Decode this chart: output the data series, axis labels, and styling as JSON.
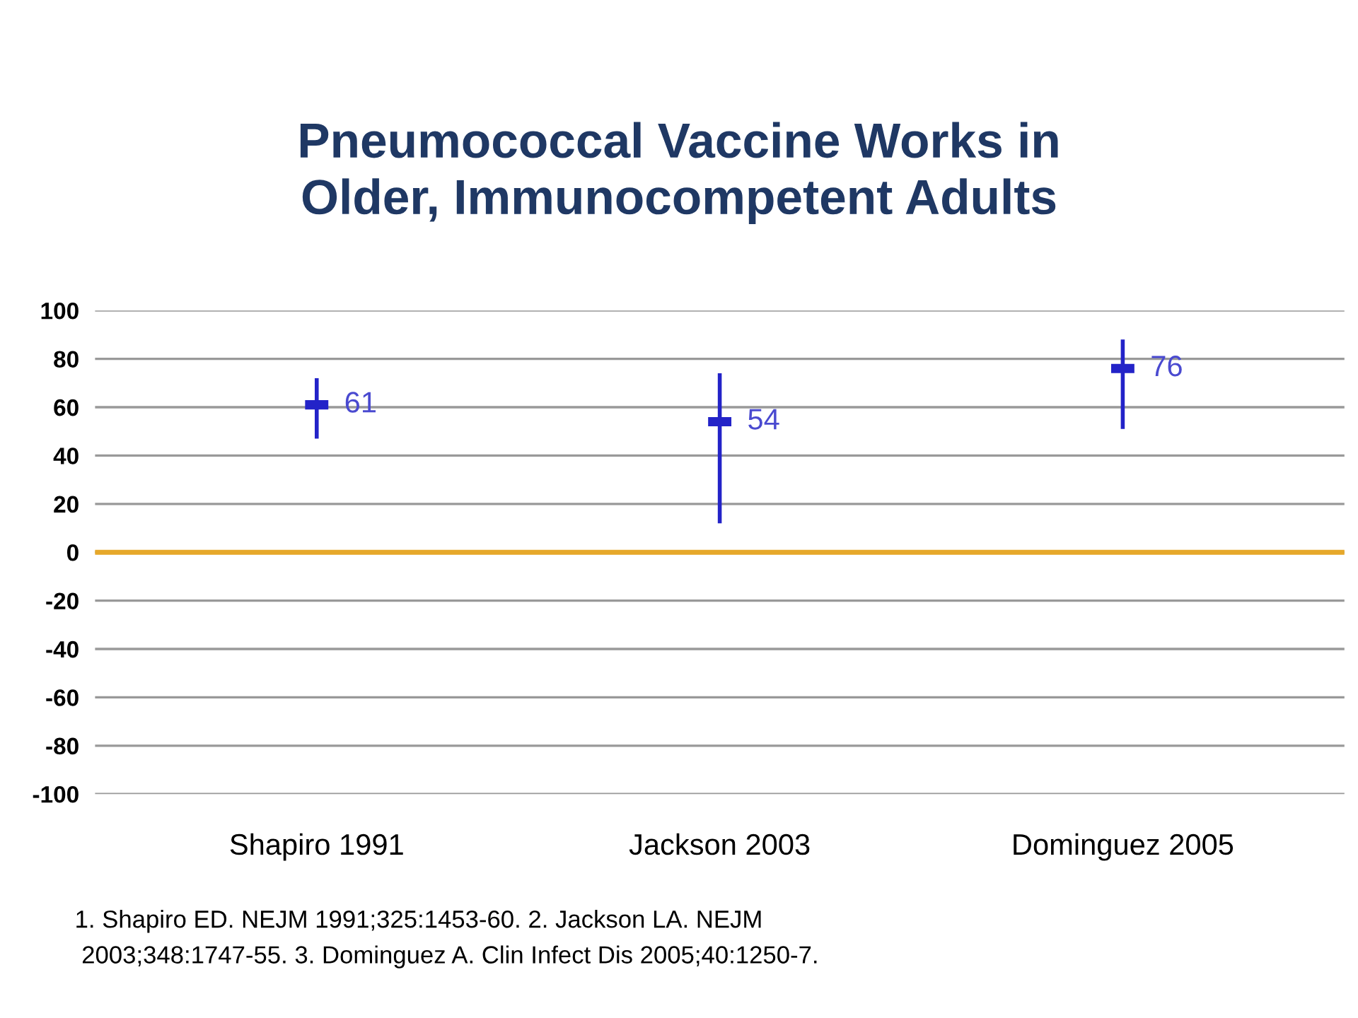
{
  "chart_data": {
    "type": "scatter",
    "title": "Pneumococcal Vaccine Works in\nOlder, Immunocompetent Adults",
    "categories": [
      "Shapiro 1991",
      "Jackson 2003",
      "Dominguez 2005"
    ],
    "series": [
      {
        "color": "#2323c8",
        "values": [
          61,
          54,
          76
        ],
        "errors": [
          [
            47,
            72
          ],
          [
            12,
            74
          ],
          [
            51,
            88
          ]
        ]
      }
    ],
    "data_labels": true,
    "ylim": [
      -100,
      100
    ],
    "yticks": [
      -100,
      -80,
      -60,
      -40,
      -20,
      0,
      20,
      40,
      60,
      80,
      100
    ],
    "grid": "y",
    "ref_lines": [
      {
        "axis": "y",
        "value": 0,
        "color": "#e6a82a"
      }
    ],
    "annotations": [
      "1. Shapiro ED. NEJM 1991;325:1453-60. 2. Jackson LA. NEJM",
      "2003;348:1747-55. 3. Dominguez A. Clin Infect Dis 2005;40:1250-7."
    ]
  }
}
